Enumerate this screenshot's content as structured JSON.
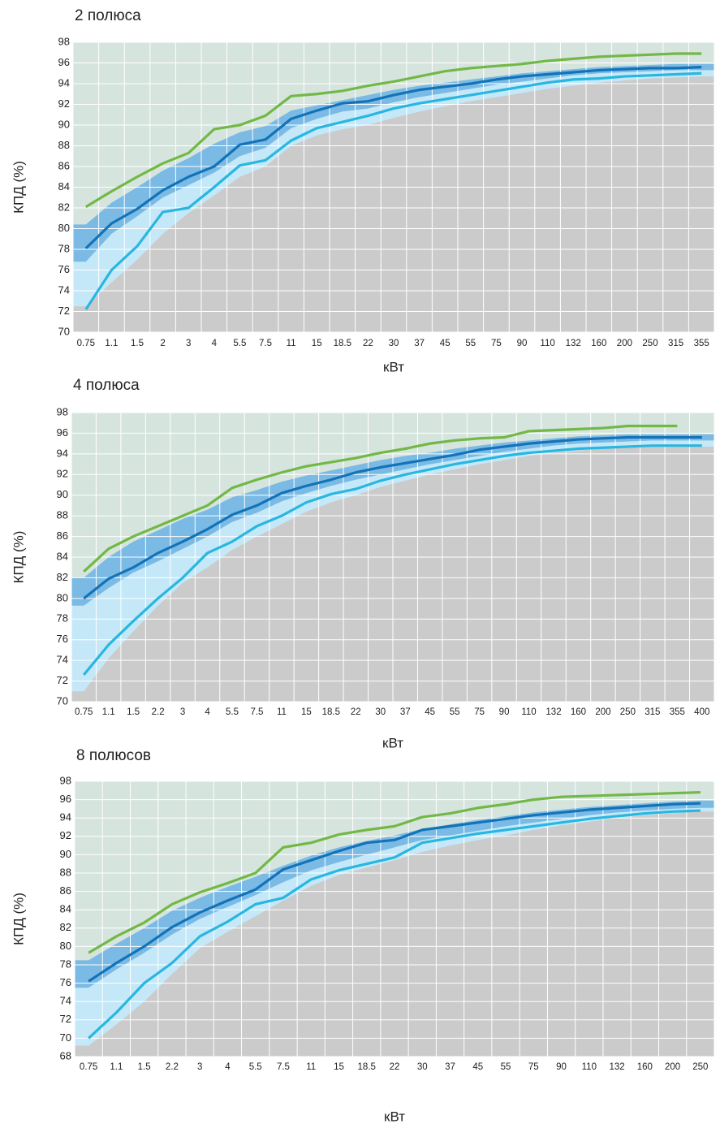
{
  "chart_data": [
    {
      "type": "line",
      "title": "2 полюса",
      "x_label": "кВт",
      "y_label": "КПД (%)",
      "categories": [
        "0.75",
        "1.1",
        "1.5",
        "2",
        "3",
        "4",
        "5.5",
        "7.5",
        "11",
        "15",
        "18.5",
        "22",
        "30",
        "37",
        "45",
        "55",
        "75",
        "90",
        "110",
        "132",
        "160",
        "200",
        "250",
        "315",
        "355"
      ],
      "ylim": [
        70,
        98
      ],
      "yticks": [
        70,
        72,
        74,
        76,
        78,
        80,
        82,
        84,
        86,
        88,
        90,
        92,
        94,
        96,
        98
      ],
      "grid": true,
      "background": "#d6e4de",
      "areas": [
        {
          "color": "#7bbae4",
          "values": [
            80.4,
            82.5,
            84.0,
            85.6,
            86.8,
            88.2,
            89.3,
            89.9,
            91.4,
            91.9,
            92.4,
            92.9,
            93.4,
            93.8,
            94.1,
            94.4,
            94.7,
            95.0,
            95.2,
            95.4,
            95.6,
            95.7,
            95.8,
            95.9,
            95.9
          ]
        },
        {
          "color": "#c4e8f8",
          "values": [
            76.8,
            79.5,
            81.2,
            83.0,
            84.2,
            85.4,
            87.0,
            87.8,
            89.7,
            90.6,
            91.3,
            91.6,
            92.2,
            92.7,
            93.1,
            93.5,
            93.9,
            94.2,
            94.5,
            94.8,
            95.0,
            95.1,
            95.2,
            95.3,
            95.3
          ]
        },
        {
          "color": "#cbcbcb",
          "values": [
            72.5,
            74.8,
            77.0,
            79.5,
            81.5,
            83.2,
            85.0,
            86.0,
            88.0,
            89.0,
            89.6,
            90.0,
            90.7,
            91.3,
            91.8,
            92.3,
            92.7,
            93.1,
            93.5,
            93.8,
            94.1,
            94.3,
            94.5,
            94.6,
            94.7
          ]
        }
      ],
      "series": [
        {
          "color": "#72b846",
          "values": [
            82.1,
            83.6,
            85.0,
            86.3,
            87.3,
            89.6,
            90.0,
            90.9,
            92.8,
            93.0,
            93.3,
            93.8,
            94.2,
            94.7,
            95.2,
            95.5,
            95.7,
            95.9,
            96.2,
            96.4,
            96.6,
            96.7,
            96.8,
            96.9,
            96.9
          ]
        },
        {
          "color": "#1273b8",
          "values": [
            78.1,
            80.5,
            81.9,
            83.7,
            85.0,
            86.0,
            88.1,
            88.6,
            90.6,
            91.4,
            92.1,
            92.3,
            92.9,
            93.4,
            93.7,
            94.0,
            94.4,
            94.7,
            94.9,
            95.1,
            95.3,
            95.4,
            95.5,
            95.5,
            95.6
          ]
        },
        {
          "color": "#29b6e0",
          "values": [
            72.2,
            76.0,
            78.3,
            81.6,
            82.0,
            84.0,
            86.1,
            86.6,
            88.5,
            89.7,
            90.3,
            90.9,
            91.6,
            92.1,
            92.5,
            92.9,
            93.3,
            93.7,
            94.1,
            94.4,
            94.5,
            94.7,
            94.8,
            94.9,
            95.0
          ]
        }
      ]
    },
    {
      "type": "line",
      "title": "4 полюса",
      "x_label": "кВт",
      "y_label": "КПД (%)",
      "categories": [
        "0.75",
        "1.1",
        "1.5",
        "2.2",
        "3",
        "4",
        "5.5",
        "7.5",
        "11",
        "15",
        "18.5",
        "22",
        "30",
        "37",
        "45",
        "55",
        "75",
        "90",
        "110",
        "132",
        "160",
        "200",
        "250",
        "315",
        "355",
        "400"
      ],
      "ylim": [
        70,
        98
      ],
      "yticks": [
        70,
        72,
        74,
        76,
        78,
        80,
        82,
        84,
        86,
        88,
        90,
        92,
        94,
        96,
        98
      ],
      "grid": true,
      "background": "#d6e4de",
      "areas": [
        {
          "color": "#7bbae4",
          "values": [
            82.0,
            84.0,
            85.5,
            86.6,
            87.7,
            88.6,
            89.8,
            90.5,
            91.3,
            91.9,
            92.4,
            92.9,
            93.4,
            93.8,
            94.1,
            94.5,
            94.8,
            95.1,
            95.3,
            95.5,
            95.7,
            95.8,
            95.9,
            95.9,
            95.9,
            95.9
          ]
        },
        {
          "color": "#c4e8f8",
          "values": [
            79.3,
            81.0,
            82.5,
            83.6,
            84.8,
            86.0,
            87.4,
            88.3,
            89.4,
            90.2,
            90.9,
            91.5,
            92.0,
            92.5,
            93.0,
            93.4,
            93.8,
            94.2,
            94.5,
            94.8,
            95.0,
            95.1,
            95.2,
            95.3,
            95.3,
            95.3
          ]
        },
        {
          "color": "#cbcbcb",
          "values": [
            71.0,
            74.2,
            76.8,
            79.3,
            81.5,
            83.0,
            84.7,
            86.0,
            87.2,
            88.4,
            89.3,
            90.0,
            90.8,
            91.4,
            92.0,
            92.5,
            93.0,
            93.4,
            93.8,
            94.1,
            94.3,
            94.5,
            94.6,
            94.7,
            94.7,
            94.7
          ]
        }
      ],
      "series": [
        {
          "color": "#72b846",
          "values": [
            82.6,
            84.8,
            86.0,
            87.0,
            88.0,
            89.0,
            90.7,
            91.5,
            92.2,
            92.8,
            93.2,
            93.6,
            94.1,
            94.5,
            95.0,
            95.3,
            95.5,
            95.6,
            96.2,
            96.3,
            96.4,
            96.5,
            96.7,
            96.7,
            96.7,
            null
          ]
        },
        {
          "color": "#1273b8",
          "values": [
            80.0,
            81.9,
            83.0,
            84.4,
            85.5,
            86.7,
            88.1,
            89.0,
            90.2,
            90.9,
            91.5,
            92.2,
            92.7,
            93.1,
            93.5,
            93.9,
            94.4,
            94.7,
            95.0,
            95.2,
            95.4,
            95.5,
            95.6,
            95.6,
            95.6,
            95.6
          ]
        },
        {
          "color": "#29b6e0",
          "values": [
            72.6,
            75.5,
            77.8,
            80.0,
            82.0,
            84.4,
            85.5,
            87.0,
            88.0,
            89.3,
            90.1,
            90.6,
            91.4,
            92.0,
            92.5,
            93.0,
            93.4,
            93.8,
            94.1,
            94.3,
            94.5,
            94.6,
            94.7,
            94.8,
            94.8,
            94.8
          ]
        }
      ]
    },
    {
      "type": "line",
      "title": "8 полюсов",
      "x_label": "кВт",
      "y_label": "КПД (%)",
      "categories": [
        "0.75",
        "1.1",
        "1.5",
        "2.2",
        "3",
        "4",
        "5.5",
        "7.5",
        "11",
        "15",
        "18.5",
        "22",
        "30",
        "37",
        "45",
        "55",
        "75",
        "90",
        "110",
        "132",
        "160",
        "200",
        "250"
      ],
      "ylim": [
        68,
        98
      ],
      "yticks": [
        68,
        70,
        72,
        74,
        76,
        78,
        80,
        82,
        84,
        86,
        88,
        90,
        92,
        94,
        96,
        98
      ],
      "grid": true,
      "background": "#d6e4de",
      "areas": [
        {
          "color": "#7bbae4",
          "values": [
            78.5,
            80.3,
            82.0,
            83.9,
            85.3,
            86.5,
            87.6,
            88.8,
            89.9,
            90.8,
            91.5,
            92.1,
            92.8,
            93.3,
            93.8,
            94.2,
            94.6,
            94.9,
            95.2,
            95.4,
            95.6,
            95.8,
            95.9
          ]
        },
        {
          "color": "#c4e8f8",
          "values": [
            75.5,
            77.5,
            79.3,
            81.3,
            83.0,
            84.3,
            85.6,
            87.0,
            88.3,
            89.2,
            90.0,
            90.8,
            91.6,
            92.1,
            92.6,
            93.1,
            93.5,
            93.9,
            94.3,
            94.6,
            94.8,
            95.0,
            95.1
          ]
        },
        {
          "color": "#cbcbcb",
          "values": [
            69.2,
            71.5,
            74.0,
            77.0,
            79.8,
            81.6,
            83.3,
            85.0,
            86.6,
            87.8,
            88.6,
            89.4,
            90.3,
            91.0,
            91.6,
            92.1,
            92.7,
            93.2,
            93.6,
            94.0,
            94.3,
            94.5,
            94.7
          ]
        }
      ],
      "series": [
        {
          "color": "#72b846",
          "values": [
            79.3,
            81.1,
            82.6,
            84.6,
            85.9,
            86.9,
            88.0,
            90.8,
            91.3,
            92.2,
            92.7,
            93.1,
            94.1,
            94.5,
            95.1,
            95.5,
            96.0,
            96.3,
            96.4,
            96.5,
            96.6,
            96.7,
            96.8
          ]
        },
        {
          "color": "#1273b8",
          "values": [
            76.2,
            78.2,
            80.0,
            82.1,
            83.7,
            85.0,
            86.2,
            88.4,
            89.4,
            90.4,
            91.3,
            91.6,
            92.7,
            93.1,
            93.5,
            93.9,
            94.3,
            94.6,
            94.9,
            95.1,
            95.3,
            95.5,
            95.6
          ]
        },
        {
          "color": "#29b6e0",
          "values": [
            70.0,
            72.8,
            76.0,
            78.2,
            81.1,
            82.7,
            84.6,
            85.3,
            87.3,
            88.3,
            89.0,
            89.7,
            91.3,
            91.8,
            92.3,
            92.7,
            93.1,
            93.5,
            93.9,
            94.2,
            94.5,
            94.7,
            94.8
          ]
        }
      ]
    }
  ]
}
